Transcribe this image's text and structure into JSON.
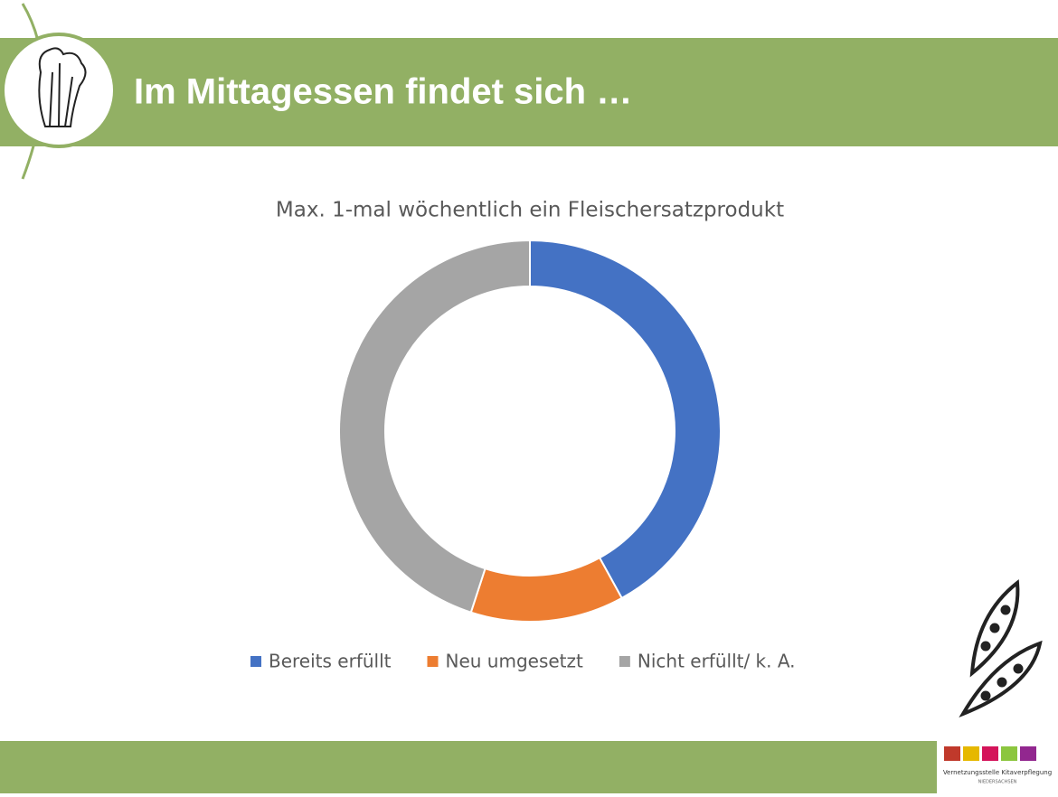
{
  "header": {
    "title": "Im Mittagessen findet sich …"
  },
  "chart_data": {
    "type": "donut",
    "title": "Max. 1-mal wöchentlich ein Fleischersatzprodukt",
    "categories": [
      "Bereits erfüllt",
      "Neu umgesetzt",
      "Nicht erfüllt/ k. A."
    ],
    "values": [
      42,
      13,
      45
    ],
    "colors": [
      "#4472c4",
      "#ed7d31",
      "#a5a5a5"
    ],
    "legend": "bottom"
  },
  "logo": {
    "name": "Vernetzungsstelle Kitaverpflegung",
    "region": "NIEDERSACHSEN"
  }
}
